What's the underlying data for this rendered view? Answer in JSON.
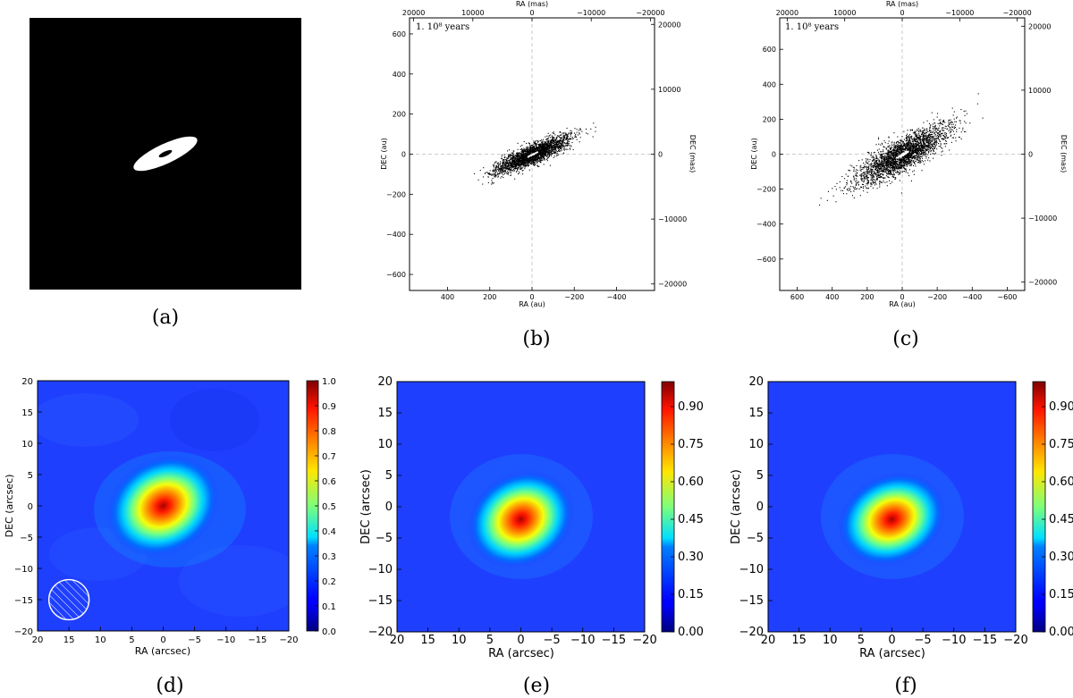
{
  "panels": {
    "a": {
      "caption": "(a)",
      "type": "image",
      "disk_color": "#ffffff",
      "background_color": "#000000"
    },
    "b": {
      "caption": "(b)",
      "epoch_label": "1. 10⁸ years",
      "type": "scatter",
      "xlabel": "RA (au)",
      "ylabel": "DEC (au)",
      "x2label": "RA (mas)",
      "y2label": "DEC (mas)",
      "xlim": [
        580,
        -580
      ],
      "ylim": [
        -680,
        680
      ],
      "x2lim": [
        20700,
        -20700
      ],
      "y2lim": [
        -21000,
        21000
      ],
      "xticks": [
        400,
        200,
        0,
        -200,
        -400
      ],
      "yticks": [
        600,
        400,
        200,
        0,
        -200,
        -400,
        -600
      ],
      "x2ticks": [
        20000,
        10000,
        0,
        -10000,
        -20000
      ],
      "y2ticks": [
        20000,
        10000,
        0,
        -10000,
        -20000
      ],
      "xtick_labels": [
        "400",
        "200",
        "0",
        "−200",
        "−400"
      ],
      "ytick_labels": [
        "600",
        "400",
        "200",
        "0",
        "−200",
        "−400",
        "−600"
      ],
      "x2tick_labels": [
        "20000",
        "10000",
        "0",
        "−10000",
        "−20000"
      ],
      "y2tick_labels": [
        "20000",
        "10000",
        "0",
        "−10000",
        "−20000"
      ],
      "grid": "dashed at 0"
    },
    "c": {
      "caption": "(c)",
      "epoch_label": "1. 10⁸ years",
      "type": "scatter",
      "xlabel": "RA (au)",
      "ylabel": "DEC (au)",
      "x2label": "RA (mas)",
      "y2label": "DEC (mas)",
      "xlim": [
        700,
        -700
      ],
      "ylim": [
        -780,
        780
      ],
      "x2lim": [
        21300,
        -21300
      ],
      "y2lim": [
        -21300,
        21300
      ],
      "xticks": [
        600,
        400,
        200,
        0,
        -200,
        -400,
        -600
      ],
      "yticks": [
        600,
        400,
        200,
        0,
        -200,
        -400,
        -600
      ],
      "x2ticks": [
        20000,
        10000,
        0,
        -10000,
        -20000
      ],
      "y2ticks": [
        20000,
        10000,
        0,
        -10000,
        -20000
      ],
      "xtick_labels": [
        "600",
        "400",
        "200",
        "0",
        "−200",
        "−400",
        "−600"
      ],
      "ytick_labels": [
        "600",
        "400",
        "200",
        "0",
        "−200",
        "−400",
        "−600"
      ],
      "x2tick_labels": [
        "20000",
        "10000",
        "0",
        "−10000",
        "−20000"
      ],
      "y2tick_labels": [
        "20000",
        "10000",
        "0",
        "−10000",
        "−20000"
      ],
      "grid": "dashed at 0"
    },
    "d": {
      "caption": "(d)",
      "type": "heatmap",
      "xlabel": "RA (arcsec)",
      "ylabel": "DEC (arcsec)",
      "xlim": [
        20,
        -20
      ],
      "ylim": [
        -20,
        20
      ],
      "xticks": [
        20,
        15,
        10,
        5,
        0,
        -5,
        -10,
        -15,
        -20
      ],
      "yticks": [
        20,
        15,
        10,
        5,
        0,
        -5,
        -10,
        -15,
        -20
      ],
      "xtick_labels": [
        "20",
        "15",
        "10",
        "5",
        "0",
        "−5",
        "−10",
        "−15",
        "−20"
      ],
      "ytick_labels": [
        "20",
        "15",
        "10",
        "5",
        "0",
        "−5",
        "−10",
        "−15",
        "−20"
      ],
      "colorbar_ticks": [
        1.0,
        0.9,
        0.8,
        0.7,
        0.6,
        0.5,
        0.4,
        0.3,
        0.2,
        0.1,
        0.0
      ],
      "colorbar_labels": [
        "1.0",
        "0.9",
        "0.8",
        "0.7",
        "0.6",
        "0.5",
        "0.4",
        "0.3",
        "0.2",
        "0.1",
        "0.0"
      ],
      "colorbar_range": [
        0,
        1.0
      ],
      "peak_center": [
        0,
        0
      ],
      "beam_center": [
        15,
        -15
      ],
      "beam_radius": 3.2
    },
    "e": {
      "caption": "(e)",
      "type": "heatmap",
      "xlabel": "RA (arcsec)",
      "ylabel": "DEC (arcsec)",
      "xlim": [
        20,
        -20
      ],
      "ylim": [
        -20,
        20
      ],
      "xticks": [
        20,
        15,
        10,
        5,
        0,
        -5,
        -10,
        -15,
        -20
      ],
      "yticks": [
        20,
        15,
        10,
        5,
        0,
        -5,
        -10,
        -15,
        -20
      ],
      "xtick_labels": [
        "20",
        "15",
        "10",
        "5",
        "0",
        "−5",
        "−10",
        "−15",
        "−20"
      ],
      "ytick_labels": [
        "20",
        "15",
        "10",
        "5",
        "0",
        "−5",
        "−10",
        "−15",
        "−20"
      ],
      "colorbar_ticks": [
        0.9,
        0.75,
        0.6,
        0.45,
        0.3,
        0.15,
        0.0
      ],
      "colorbar_labels": [
        "0.90",
        "0.75",
        "0.60",
        "0.45",
        "0.30",
        "0.15",
        "0.00"
      ],
      "colorbar_range": [
        0,
        1.0
      ],
      "peak_center": [
        0,
        -2
      ]
    },
    "f": {
      "caption": "(f)",
      "type": "heatmap",
      "xlabel": "RA (arcsec)",
      "ylabel": "DEC (arcsec)",
      "xlim": [
        20,
        -20
      ],
      "ylim": [
        -20,
        20
      ],
      "xticks": [
        20,
        15,
        10,
        5,
        0,
        -5,
        -10,
        -15,
        -20
      ],
      "yticks": [
        20,
        15,
        10,
        5,
        0,
        -5,
        -10,
        -15,
        -20
      ],
      "xtick_labels": [
        "20",
        "15",
        "10",
        "5",
        "0",
        "−5",
        "−10",
        "−15",
        "−20"
      ],
      "ytick_labels": [
        "20",
        "15",
        "10",
        "5",
        "0",
        "−5",
        "−10",
        "−15",
        "−20"
      ],
      "colorbar_ticks": [
        0.9,
        0.75,
        0.6,
        0.45,
        0.3,
        0.15,
        0.0
      ],
      "colorbar_labels": [
        "0.90",
        "0.75",
        "0.60",
        "0.45",
        "0.30",
        "0.15",
        "0.00"
      ],
      "colorbar_range": [
        0,
        1.0
      ],
      "peak_center": [
        0,
        -2
      ]
    }
  },
  "chart_data": [
    {
      "panel": "b",
      "type": "scatter",
      "description_values": {
        "disk_major_semi_au": 300,
        "position_angle_deg": 25,
        "axis_ratio": 0.2
      },
      "xlabel": "RA (au)",
      "ylabel": "DEC (au)",
      "xlim": [
        580,
        -580
      ],
      "ylim": [
        -680,
        680
      ]
    },
    {
      "panel": "c",
      "type": "scatter",
      "description_values": {
        "disk_major_semi_au": 480,
        "position_angle_deg": 30,
        "axis_ratio": 0.25
      },
      "xlabel": "RA (au)",
      "ylabel": "DEC (au)",
      "xlim": [
        700,
        -700
      ],
      "ylim": [
        -780,
        780
      ]
    },
    {
      "panel": "d",
      "type": "heatmap",
      "xlabel": "RA (arcsec)",
      "ylabel": "DEC (arcsec)",
      "xlim": [
        20,
        -20
      ],
      "ylim": [
        -20,
        20
      ],
      "colorbar_range": [
        0,
        1.0
      ],
      "peak": [
        0,
        0
      ]
    },
    {
      "panel": "e",
      "type": "heatmap",
      "xlabel": "RA (arcsec)",
      "ylabel": "DEC (arcsec)",
      "xlim": [
        20,
        -20
      ],
      "ylim": [
        -20,
        20
      ],
      "colorbar_range": [
        0,
        1.0
      ],
      "peak": [
        0,
        -2
      ]
    },
    {
      "panel": "f",
      "type": "heatmap",
      "xlabel": "RA (arcsec)",
      "ylabel": "DEC (arcsec)",
      "xlim": [
        20,
        -20
      ],
      "ylim": [
        -20,
        20
      ],
      "colorbar_range": [
        0,
        1.0
      ],
      "peak": [
        0,
        -2
      ]
    }
  ]
}
